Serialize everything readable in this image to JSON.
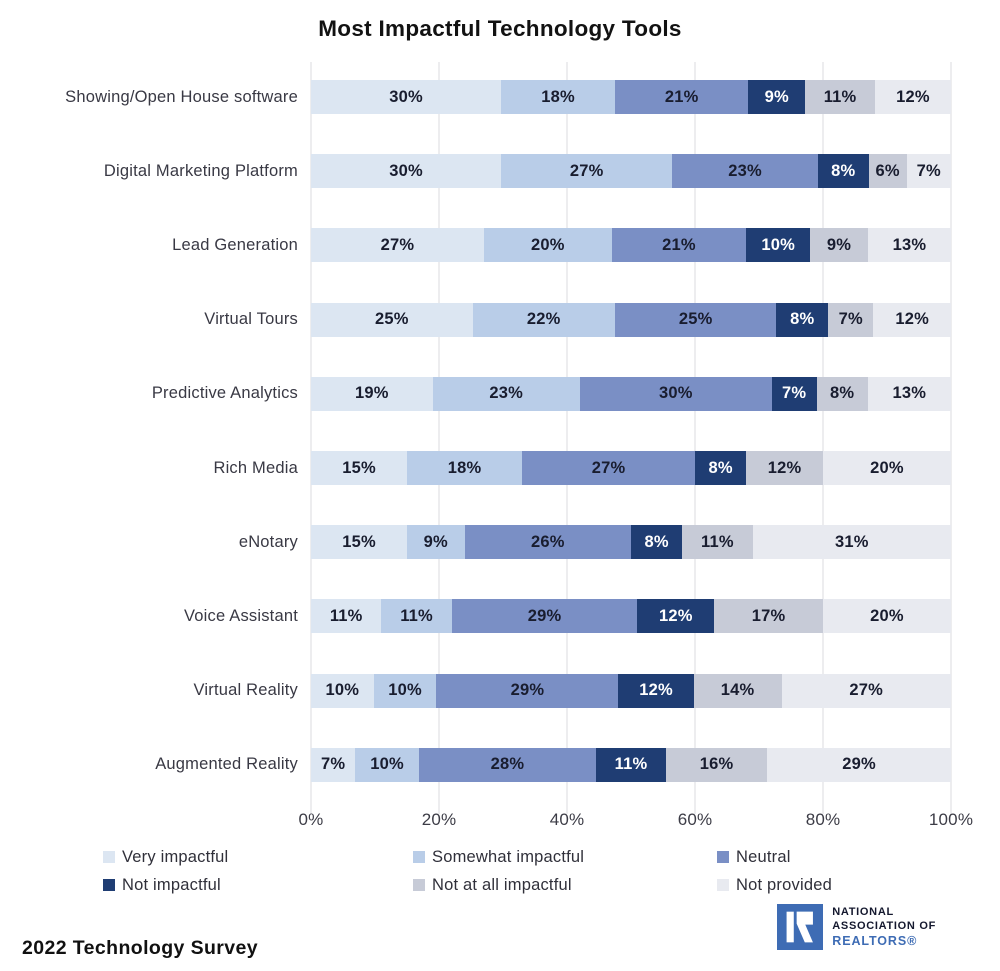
{
  "chart_data": {
    "type": "bar",
    "stacked": true,
    "orientation": "horizontal",
    "title": "Most Impactful Technology Tools",
    "categories": [
      "Showing/Open House software",
      "Digital Marketing Platform",
      "Lead Generation",
      "Virtual Tours",
      "Predictive Analytics",
      "Rich Media",
      "eNotary",
      "Voice Assistant",
      "Virtual Reality",
      "Augmented Reality"
    ],
    "series": [
      {
        "key": "very-impactful",
        "name": "Very impactful",
        "color": "#dce6f2",
        "values": [
          30,
          30,
          27,
          25,
          19,
          15,
          15,
          11,
          10,
          7
        ]
      },
      {
        "key": "somewhat-impactful",
        "name": "Somewhat impactful",
        "color": "#b9cde8",
        "values": [
          18,
          27,
          20,
          22,
          23,
          18,
          9,
          11,
          10,
          10
        ]
      },
      {
        "key": "neutral",
        "name": "Neutral",
        "color": "#7a8fc5",
        "values": [
          21,
          23,
          21,
          25,
          30,
          27,
          26,
          29,
          29,
          28
        ]
      },
      {
        "key": "not-impactful",
        "name": "Not impactful",
        "color": "#1f3d73",
        "label_color": "#ffffff",
        "values": [
          9,
          8,
          10,
          8,
          7,
          8,
          8,
          12,
          12,
          11
        ]
      },
      {
        "key": "not-at-all-impactful",
        "name": "Not at all impactful",
        "color": "#c7cbd7",
        "values": [
          11,
          6,
          9,
          7,
          8,
          12,
          11,
          17,
          14,
          16
        ]
      },
      {
        "key": "not-provided",
        "name": "Not provided",
        "color": "#e8eaf0",
        "values": [
          12,
          7,
          13,
          12,
          13,
          20,
          31,
          20,
          27,
          29
        ]
      }
    ],
    "x_ticks": [
      "0%",
      "20%",
      "40%",
      "60%",
      "80%",
      "100%"
    ],
    "xlim": [
      0,
      100
    ],
    "grid": true,
    "legend_position": "bottom",
    "value_suffix": "%",
    "value_label_color": "#191d2f",
    "gridline_color": "#dbdbdf"
  },
  "footer": {
    "survey_label": "2022 Technology Survey",
    "logo": {
      "square_color": "#3e6cb4",
      "dark_text_color": "#14182e",
      "blue_text_color": "#3e6cb4",
      "lines": [
        "NATIONAL",
        "ASSOCIATION OF",
        "REALTORS®"
      ]
    }
  }
}
